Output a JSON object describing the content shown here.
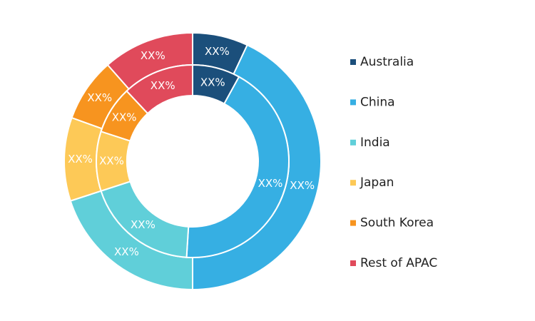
{
  "chart_data": {
    "type": "donut",
    "categories": [
      "Australia",
      "China",
      "India",
      "Japan",
      "South Korea",
      "Rest of APAC"
    ],
    "colors": [
      "#1b4f7b",
      "#36afe3",
      "#60cfd9",
      "#fdc957",
      "#f7941f",
      "#e04a5b"
    ],
    "series": [
      {
        "values": [
          7,
          43,
          20,
          10.5,
          8,
          11.5
        ],
        "value_labels": [
          "XX%",
          "XX%",
          "XX%",
          "XX%",
          "XX%",
          "XX%"
        ]
      },
      {
        "values": [
          8,
          43,
          19,
          10,
          8,
          12
        ],
        "value_labels": [
          "XX%",
          "XX%",
          "XX%",
          "XX%",
          "XX%",
          "XX%"
        ]
      }
    ]
  }
}
